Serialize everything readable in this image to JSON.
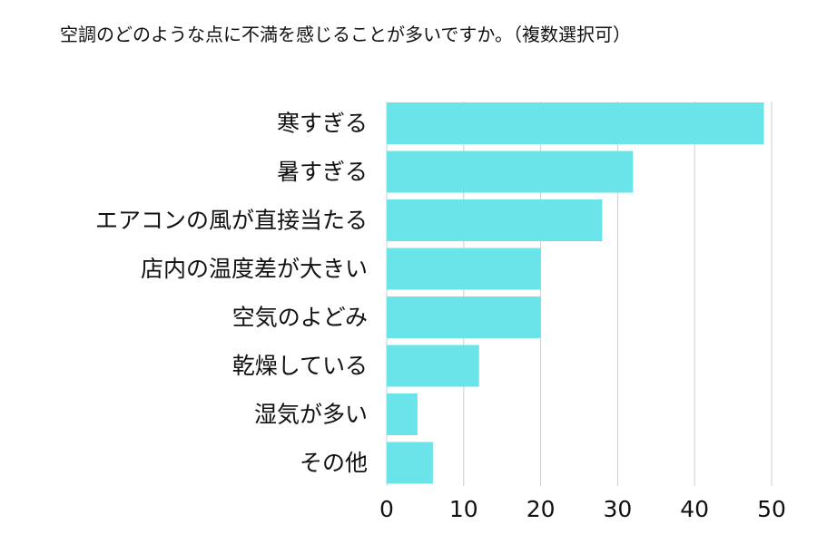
{
  "title": "空調のどのような点に不満を感じることが多いですか。（複数選択可）",
  "colors": {
    "bar": "#6ae4e8",
    "grid": "#cccccc",
    "text": "#111111"
  },
  "chart_data": {
    "type": "bar",
    "orientation": "horizontal",
    "title": "空調のどのような点に不満を感じることが多いですか。（複数選択可）",
    "xlabel": "",
    "ylabel": "",
    "categories": [
      "寒すぎる",
      "暑すぎる",
      "エアコンの風が直接当たる",
      "店内の温度差が大きい",
      "空気のよどみ",
      "乾燥している",
      "湿気が多い",
      "その他"
    ],
    "values": [
      49,
      32,
      28,
      20,
      20,
      12,
      4,
      6
    ],
    "xlim": [
      0,
      50
    ],
    "xticks": [
      0,
      10,
      20,
      30,
      40,
      50
    ],
    "grid": true,
    "legend": "none"
  }
}
